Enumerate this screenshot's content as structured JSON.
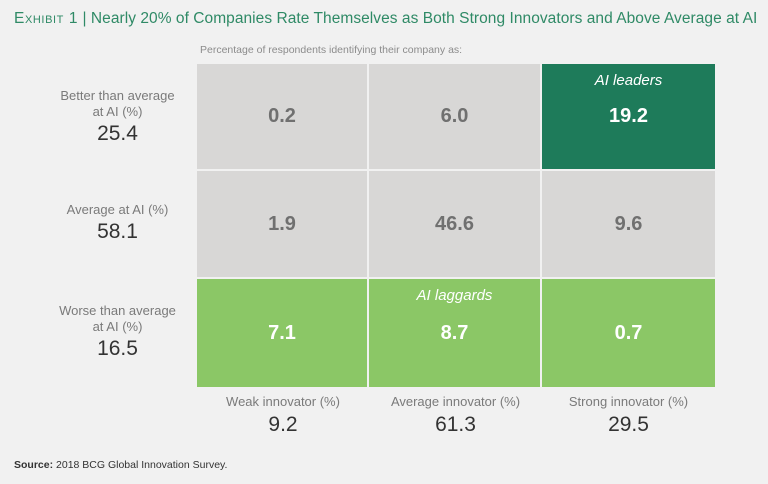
{
  "title": {
    "exhibit": "Exhibit 1",
    "separator": " | ",
    "text": "Nearly 20% of Companies Rate Themselves as Both Strong Innovators and Above Average at AI"
  },
  "subtitle": "Percentage of respondents identifying their company as:",
  "source": {
    "label": "Source:",
    "text": " 2018 BCG Global Innovation Survey."
  },
  "colors": {
    "title": "#2f8a66",
    "gray_cell": "#d8d7d6",
    "ai_leaders": "#1e7b5a",
    "ai_laggards": "#8bc766",
    "background": "#f1f1f1"
  },
  "chart_data": {
    "type": "heatmap",
    "title": "Nearly 20% of Companies Rate Themselves as Both Strong Innovators and Above Average at AI",
    "subtitle": "Percentage of respondents identifying their company as:",
    "rows": [
      {
        "label": "Better than average at AI (%)",
        "total": "25.4"
      },
      {
        "label": "Average at AI (%)",
        "total": "58.1"
      },
      {
        "label": "Worse than average at AI (%)",
        "total": "16.5"
      }
    ],
    "columns": [
      {
        "label": "Weak innovator (%)",
        "total": "9.2"
      },
      {
        "label": "Average innovator (%)",
        "total": "61.3"
      },
      {
        "label": "Strong innovator (%)",
        "total": "29.5"
      }
    ],
    "values": [
      [
        "0.2",
        "6.0",
        "19.2"
      ],
      [
        "1.9",
        "46.6",
        "9.6"
      ],
      [
        "7.1",
        "8.7",
        "0.7"
      ]
    ],
    "cell_groups": [
      [
        "neutral",
        "neutral",
        "ai-leaders"
      ],
      [
        "neutral",
        "neutral",
        "neutral"
      ],
      [
        "ai-laggards",
        "ai-laggards",
        "ai-laggards"
      ]
    ],
    "annotations": [
      {
        "text": "AI leaders",
        "row": 0,
        "col": 2
      },
      {
        "text": "AI laggards",
        "row": 2,
        "col": 1
      }
    ],
    "xlabel": "",
    "ylabel": ""
  }
}
